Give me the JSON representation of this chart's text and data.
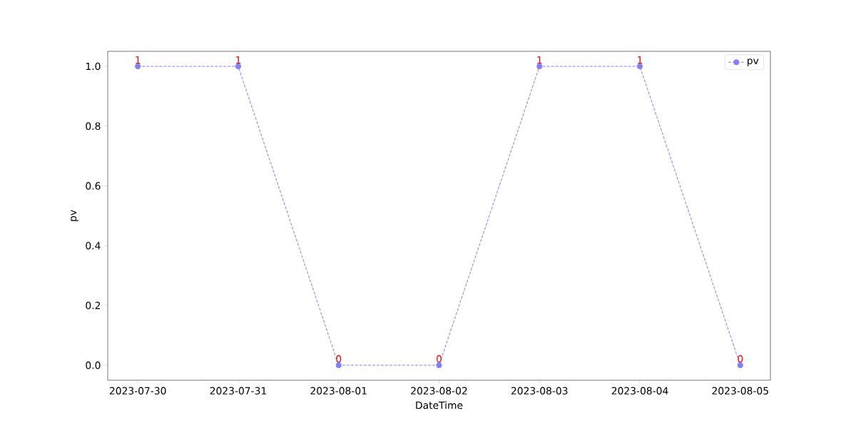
{
  "chart_data": {
    "type": "line",
    "xlabel": "DateTime",
    "ylabel": "pv",
    "x": [
      "2023-07-30",
      "2023-07-31",
      "2023-08-01",
      "2023-08-02",
      "2023-08-03",
      "2023-08-04",
      "2023-08-05"
    ],
    "series": [
      {
        "name": "pv",
        "color": "#8080ff",
        "values": [
          1,
          1,
          0,
          0,
          1,
          1,
          0
        ],
        "value_labels": [
          "1",
          "1",
          "0",
          "0",
          "1",
          "1",
          "0"
        ]
      }
    ],
    "xlim": [
      "2023-07-29T16:48",
      "2023-08-05T07:12"
    ],
    "xticks": [
      "2023-07-30",
      "2023-07-31",
      "2023-08-01",
      "2023-08-02",
      "2023-08-03",
      "2023-08-04",
      "2023-08-05"
    ],
    "ylim": [
      -0.05,
      1.05
    ],
    "yticks": [
      {
        "value": 0,
        "label": "0.0"
      },
      {
        "value": 0.2,
        "label": "0.2"
      },
      {
        "value": 0.4,
        "label": "0.4"
      },
      {
        "value": 0.6,
        "label": "0.6"
      },
      {
        "value": 0.8,
        "label": "0.8"
      },
      {
        "value": 1,
        "label": "1.0"
      }
    ],
    "grid": false,
    "legend": "top right",
    "marker": "circle",
    "line_style": "dashed"
  }
}
